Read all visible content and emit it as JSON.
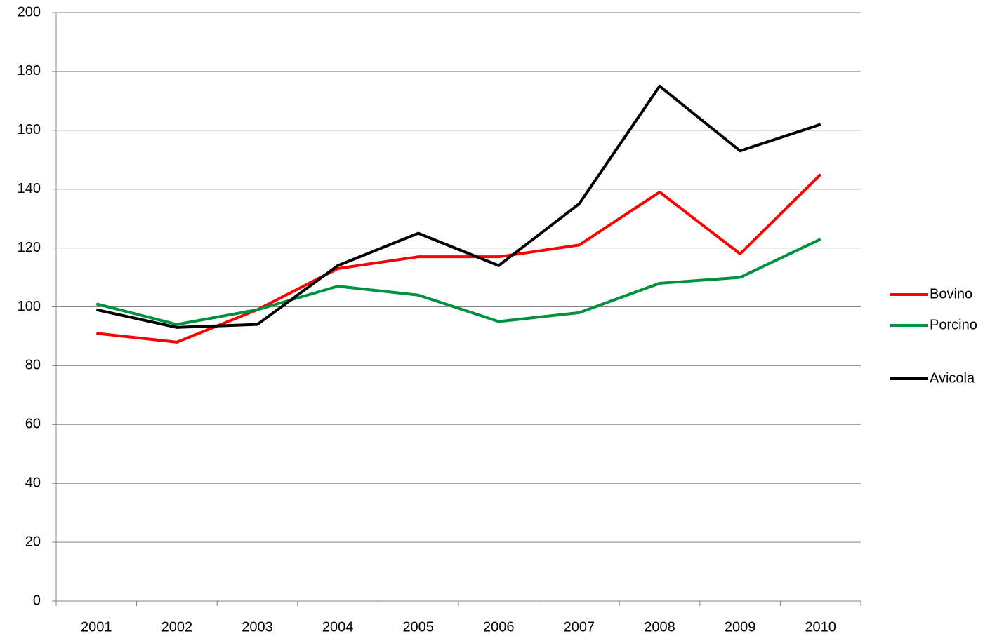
{
  "chart_data": {
    "type": "line",
    "categories": [
      "2001",
      "2002",
      "2003",
      "2004",
      "2005",
      "2006",
      "2007",
      "2008",
      "2009",
      "2010"
    ],
    "series": [
      {
        "name": "Bovino",
        "color": "#ff0000",
        "values": [
          91,
          88,
          99,
          113,
          117,
          117,
          121,
          139,
          118,
          145
        ]
      },
      {
        "name": "Porcino",
        "color": "#00913f",
        "values": [
          101,
          94,
          99,
          107,
          104,
          95,
          98,
          108,
          110,
          123
        ]
      },
      {
        "name": "Avicola",
        "color": "#000000",
        "values": [
          99,
          93,
          94,
          114,
          125,
          114,
          135,
          175,
          153,
          162
        ]
      }
    ],
    "ylim": [
      0,
      200
    ],
    "yticks": [
      0,
      20,
      40,
      60,
      80,
      100,
      120,
      140,
      160,
      180,
      200
    ],
    "grid": true,
    "legend": "right"
  }
}
